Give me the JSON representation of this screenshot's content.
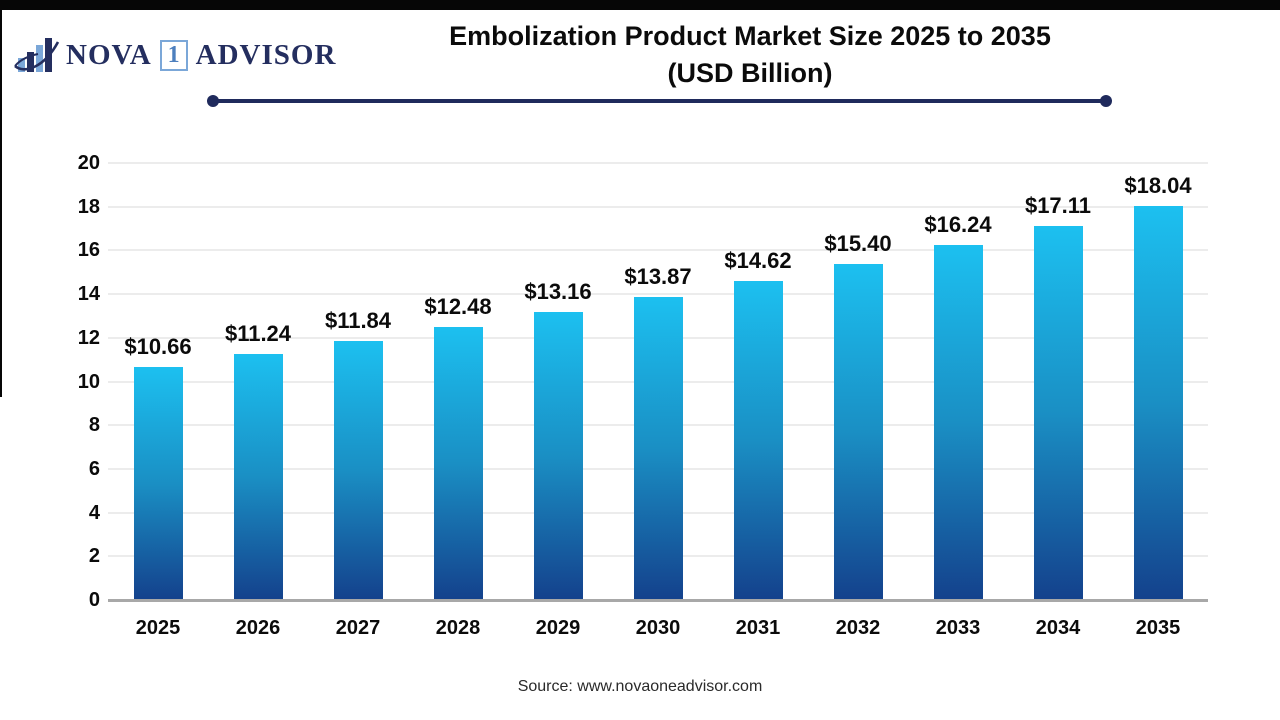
{
  "logo": {
    "nova": "NOVA",
    "one": "1",
    "advisor": "ADVISOR"
  },
  "header": {
    "title_line1": "Embolization Product Market Size 2025 to 2035",
    "title_line2": "(USD Billion)"
  },
  "chart_data": {
    "type": "bar",
    "title": "Embolization Product Market Size 2025 to 2035 (USD Billion)",
    "categories": [
      "2025",
      "2026",
      "2027",
      "2028",
      "2029",
      "2030",
      "2031",
      "2032",
      "2033",
      "2034",
      "2035"
    ],
    "values": [
      10.66,
      11.24,
      11.84,
      12.48,
      13.16,
      13.87,
      14.62,
      15.4,
      16.24,
      17.11,
      18.04
    ],
    "value_labels": [
      "$10.66",
      "$11.24",
      "$11.84",
      "$12.48",
      "$13.16",
      "$13.87",
      "$14.62",
      "$15.40",
      "$16.24",
      "$17.11",
      "$18.04"
    ],
    "xlabel": "",
    "ylabel": "",
    "ylim": [
      0,
      20
    ],
    "ytick_step": 2,
    "grid": true,
    "legend": "none",
    "colors": {
      "bar_top": "#1CC0F0",
      "bar_mid": "#1A8FC4",
      "bar_bottom": "#14418C",
      "gridline": "#ECECEC",
      "axis_line": "#A8A8A8"
    }
  },
  "footer": {
    "source": "Source: www.novaoneadvisor.com"
  },
  "accents": {
    "divider": "#1F2A5C",
    "logo_navy": "#242E5F",
    "logo_light_blue": "#7BA7D8",
    "logo_one_blue": "#4D7FBE",
    "top_bar": "#060606"
  }
}
